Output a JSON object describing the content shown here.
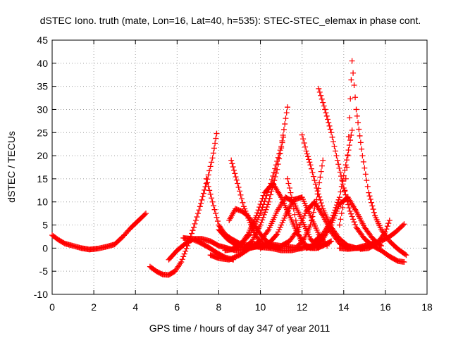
{
  "chart_data": {
    "type": "scatter",
    "title": "dSTEC Iono. truth (mate, Lon=16, Lat=40, h=535): STEC-STEC_elemax in phase cont.",
    "xlabel": "GPS time / hours of day 347 of year 2011",
    "ylabel": "dSTEC  / TECUs",
    "xlim": [
      0,
      18
    ],
    "ylim": [
      -10,
      45
    ],
    "xticks": [
      0,
      2,
      4,
      6,
      8,
      10,
      12,
      14,
      16,
      18
    ],
    "yticks": [
      -10,
      -5,
      0,
      5,
      10,
      15,
      20,
      25,
      30,
      35,
      40,
      45
    ],
    "grid": true,
    "legend": "none",
    "marker": "plus",
    "color": "#ff0000",
    "series": [
      {
        "x": [
          0,
          0.3,
          0.6,
          1.0,
          1.4,
          1.8,
          2.2,
          2.6,
          3.0,
          3.4,
          3.8,
          4.2,
          4.5
        ],
        "y": [
          2.8,
          1.8,
          1.0,
          0.5,
          0.0,
          -0.3,
          -0.1,
          0.3,
          0.8,
          2.5,
          4.5,
          6.2,
          7.5
        ]
      },
      {
        "x": [
          4.7,
          5.0,
          5.3,
          5.6,
          5.9,
          6.2,
          6.5,
          6.8,
          7.1,
          7.4,
          7.7,
          7.9
        ],
        "y": [
          -4.0,
          -5.0,
          -5.7,
          -5.8,
          -5.0,
          -3.0,
          0.5,
          4.5,
          9.0,
          14.0,
          19.5,
          24.8
        ]
      },
      {
        "x": [
          5.6,
          6.0,
          6.4,
          6.8,
          7.2,
          7.6,
          8.0,
          8.4,
          8.8,
          9.2,
          9.6,
          10.0,
          10.4
        ],
        "y": [
          -2.5,
          -0.5,
          1.0,
          2.0,
          2.0,
          1.5,
          0.5,
          0.0,
          -0.5,
          -0.3,
          0.2,
          0.5,
          0.5
        ]
      },
      {
        "x": [
          6.3,
          6.7,
          7.1,
          7.5,
          7.9,
          8.3,
          8.7
        ],
        "y": [
          2.2,
          2.0,
          1.2,
          0.2,
          -1.0,
          -2.0,
          -2.5
        ]
      },
      {
        "x": [
          7.4,
          7.7,
          8.0,
          8.3,
          8.6,
          9.0,
          9.5,
          10.0,
          10.5
        ],
        "y": [
          15.0,
          10.0,
          5.0,
          3.0,
          2.0,
          1.0,
          0.5,
          0.2,
          0.0
        ]
      },
      {
        "x": [
          7.6,
          8.0,
          8.5,
          9.0,
          9.5,
          10.0,
          10.5,
          11.0,
          11.5,
          12.0
        ],
        "y": [
          -1.5,
          -2.2,
          -2.5,
          -1.5,
          0.0,
          0.5,
          0.8,
          0.5,
          0.2,
          0.0
        ]
      },
      {
        "x": [
          8.0,
          8.4,
          8.8,
          9.2,
          9.6,
          10.0,
          10.4,
          10.8,
          11.1
        ],
        "y": [
          4.0,
          2.0,
          0.8,
          0.0,
          1.5,
          5.0,
          10.0,
          17.0,
          24.0
        ]
      },
      {
        "x": [
          8.5,
          8.8,
          9.1,
          9.4,
          9.7,
          10.0,
          10.3,
          10.6,
          11.0
        ],
        "y": [
          6.0,
          8.5,
          8.0,
          7.0,
          5.0,
          3.0,
          1.5,
          0.5,
          0.0
        ]
      },
      {
        "x": [
          8.6,
          8.9,
          9.2,
          9.5,
          9.8,
          10.1,
          10.5,
          11.0,
          11.5,
          12.0,
          12.5,
          13.0
        ],
        "y": [
          19.0,
          14.0,
          9.0,
          5.5,
          2.5,
          1.0,
          0.0,
          -0.5,
          -0.5,
          0.0,
          0.5,
          1.0
        ]
      },
      {
        "x": [
          8.3,
          8.6,
          9.0,
          9.5,
          10.0,
          10.5,
          11.0,
          11.3
        ],
        "y": [
          -0.5,
          -0.3,
          0.5,
          3.0,
          7.5,
          14.0,
          22.0,
          30.5
        ]
      },
      {
        "x": [
          9.0,
          9.4,
          9.8,
          10.2,
          10.6,
          11.0,
          11.4,
          11.8,
          12.2,
          12.6
        ],
        "y": [
          0.5,
          3.0,
          7.0,
          12.0,
          14.0,
          11.0,
          7.0,
          3.0,
          0.5,
          0.0
        ]
      },
      {
        "x": [
          9.2,
          9.6,
          10.0,
          10.4,
          10.8,
          11.2,
          11.6,
          12.0,
          12.4,
          12.8
        ],
        "y": [
          0.0,
          0.5,
          1.5,
          4.0,
          8.0,
          11.0,
          10.0,
          6.0,
          2.0,
          0.0
        ]
      },
      {
        "x": [
          10.0,
          10.4,
          10.8,
          11.2,
          11.6,
          12.0,
          12.4,
          12.8,
          13.2
        ],
        "y": [
          0.0,
          1.0,
          3.0,
          7.0,
          10.5,
          11.0,
          7.0,
          3.0,
          0.5
        ]
      },
      {
        "x": [
          11.3,
          11.5,
          11.7,
          11.9,
          12.1,
          12.4,
          12.7,
          13.0,
          13.4
        ],
        "y": [
          15.0,
          11.0,
          6.0,
          2.0,
          0.5,
          0.0,
          0.0,
          0.5,
          1.5
        ]
      },
      {
        "x": [
          11.0,
          11.4,
          11.8,
          12.2,
          12.6,
          13.0,
          13.4,
          13.8,
          14.2
        ],
        "y": [
          0.5,
          1.5,
          4.0,
          8.0,
          10.0,
          7.0,
          3.5,
          1.0,
          0.0
        ]
      },
      {
        "x": [
          12.0,
          12.2,
          12.4,
          12.7,
          13.0,
          13.4,
          13.8,
          14.2,
          14.6,
          15.0
        ],
        "y": [
          24.5,
          21.0,
          18.0,
          13.0,
          8.5,
          4.5,
          2.0,
          0.5,
          0.0,
          0.0
        ]
      },
      {
        "x": [
          11.8,
          12.1,
          12.4,
          12.7,
          13.0
        ],
        "y": [
          0.5,
          2.0,
          5.0,
          10.5,
          19.0
        ]
      },
      {
        "x": [
          12.2,
          12.6,
          13.0,
          13.4,
          13.8,
          14.2,
          14.6,
          15.0,
          15.4,
          15.8
        ],
        "y": [
          0.0,
          0.5,
          2.0,
          5.0,
          9.5,
          11.0,
          8.0,
          4.5,
          2.0,
          0.5
        ]
      },
      {
        "x": [
          12.8,
          13.1,
          13.4,
          13.7,
          14.0,
          14.3,
          14.6,
          15.0,
          15.4,
          15.8,
          16.2,
          16.6,
          16.9
        ],
        "y": [
          34.5,
          30.0,
          25.0,
          19.0,
          13.0,
          8.0,
          4.5,
          2.0,
          0.5,
          -0.5,
          -1.8,
          -2.8,
          -3.0
        ]
      },
      {
        "x": [
          12.6,
          13.0,
          13.4,
          13.8,
          14.1,
          14.4
        ],
        "y": [
          1.5,
          3.0,
          6.0,
          11.0,
          18.0,
          25.5
        ]
      },
      {
        "x": [
          13.8,
          14.0,
          14.2,
          14.4,
          14.6,
          14.9,
          15.2,
          15.5,
          15.8,
          16.2,
          16.6,
          17.0
        ],
        "y": [
          5.0,
          10.0,
          20.0,
          40.5,
          30.0,
          20.0,
          12.0,
          7.0,
          4.0,
          1.5,
          -0.2,
          -1.5
        ]
      },
      {
        "x": [
          13.8,
          14.2,
          14.6,
          15.0,
          15.4,
          15.8,
          16.2,
          16.5,
          16.9
        ],
        "y": [
          0.0,
          -0.2,
          0.0,
          0.5,
          1.0,
          1.5,
          2.5,
          3.5,
          5.2
        ]
      },
      {
        "x": [
          14.8,
          15.2,
          15.6,
          16.0,
          16.2
        ],
        "y": [
          -0.2,
          0.0,
          1.0,
          3.5,
          6.0
        ]
      }
    ]
  }
}
